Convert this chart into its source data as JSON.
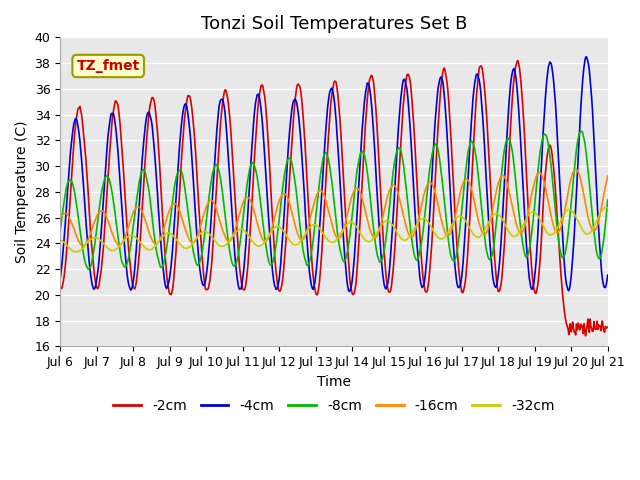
{
  "title": "Tonzi Soil Temperatures Set B",
  "xlabel": "Time",
  "ylabel": "Soil Temperature (C)",
  "ylim": [
    16,
    40
  ],
  "yticks": [
    16,
    18,
    20,
    22,
    24,
    26,
    28,
    30,
    32,
    34,
    36,
    38,
    40
  ],
  "annotation": "TZ_fmet",
  "series_colors": [
    "#dd0000",
    "#0000dd",
    "#00bb00",
    "#ff8800",
    "#cccc00"
  ],
  "series_labels": [
    "-2cm",
    "-4cm",
    "-8cm",
    "-16cm",
    "-32cm"
  ],
  "plot_bg_color": "#e8e8e8",
  "fig_bg_color": "#ffffff",
  "grid_color": "#ffffff",
  "title_fontsize": 13,
  "axis_label_fontsize": 10,
  "tick_fontsize": 9,
  "legend_fontsize": 10,
  "n_days": 15,
  "xtick_labels": [
    "Jul 6",
    "Jul 7",
    "Jul 8",
    "Jul 9",
    "Jul 10",
    "Jul 11",
    "Jul 12",
    "Jul 13",
    "Jul 14",
    "Jul 15",
    "Jul 16",
    "Jul 17",
    "Jul 18",
    "Jul 19",
    "Jul 20",
    "Jul 21"
  ]
}
